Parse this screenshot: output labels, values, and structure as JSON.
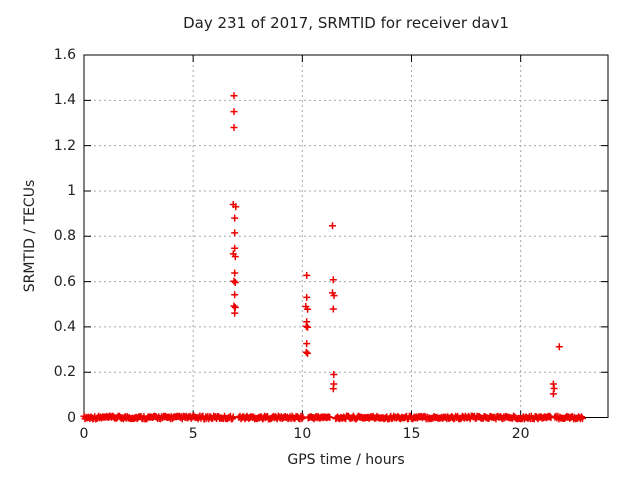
{
  "window": {
    "title": "Day 231 of 2017, SRMTID for receiver dav1"
  },
  "chart_data": {
    "type": "scatter",
    "title": "Day 231 of 2017, SRMTID for receiver dav1",
    "xlabel": "GPS time / hours",
    "ylabel": "SRMTID / TECUs",
    "xlim": [
      0,
      24
    ],
    "ylim": [
      0,
      1.6
    ],
    "xticks": [
      0,
      5,
      10,
      15,
      20
    ],
    "xtick_labels": [
      "0",
      "5",
      "10",
      "15",
      "20"
    ],
    "yticks": [
      0,
      0.2,
      0.4,
      0.6,
      0.8,
      1.0,
      1.2,
      1.4,
      1.6
    ],
    "ytick_labels": [
      "0",
      "0.2",
      "0.4",
      "0.6",
      "0.8",
      "1",
      "1.2",
      "1.4",
      "1.6"
    ],
    "grid": true,
    "legend": "none",
    "marker": "plus",
    "marker_color": "#ec0000",
    "grid_color": "#a8a8a8",
    "border_color": "#000000",
    "points": [
      [
        6.87,
        1.42
      ],
      [
        6.87,
        1.35
      ],
      [
        6.87,
        1.28
      ],
      [
        6.84,
        0.94
      ],
      [
        6.95,
        0.93
      ],
      [
        6.9,
        0.88
      ],
      [
        6.9,
        0.815
      ],
      [
        6.9,
        0.747
      ],
      [
        6.84,
        0.722
      ],
      [
        6.93,
        0.71
      ],
      [
        6.9,
        0.638
      ],
      [
        6.87,
        0.602
      ],
      [
        6.93,
        0.596
      ],
      [
        6.9,
        0.542
      ],
      [
        6.87,
        0.492
      ],
      [
        6.93,
        0.486
      ],
      [
        6.9,
        0.461
      ],
      [
        10.2,
        0.627
      ],
      [
        10.2,
        0.53
      ],
      [
        10.16,
        0.49
      ],
      [
        10.24,
        0.478
      ],
      [
        10.2,
        0.423
      ],
      [
        10.18,
        0.402
      ],
      [
        10.24,
        0.398
      ],
      [
        10.2,
        0.326
      ],
      [
        10.18,
        0.288
      ],
      [
        10.24,
        0.283
      ],
      [
        11.38,
        0.846
      ],
      [
        11.42,
        0.608
      ],
      [
        11.38,
        0.55
      ],
      [
        11.45,
        0.538
      ],
      [
        11.42,
        0.479
      ],
      [
        11.44,
        0.19
      ],
      [
        11.44,
        0.148
      ],
      [
        11.42,
        0.127
      ],
      [
        21.77,
        0.312
      ],
      [
        21.5,
        0.148
      ],
      [
        21.53,
        0.128
      ],
      [
        21.5,
        0.104
      ]
    ],
    "baseline": {
      "value": 0,
      "description": "dense band of plus markers at y=0",
      "segments": [
        [
          0.0,
          6.85
        ],
        [
          7.1,
          10.05
        ],
        [
          10.27,
          11.3
        ],
        [
          11.53,
          21.42
        ],
        [
          21.57,
          22.85
        ]
      ]
    }
  }
}
